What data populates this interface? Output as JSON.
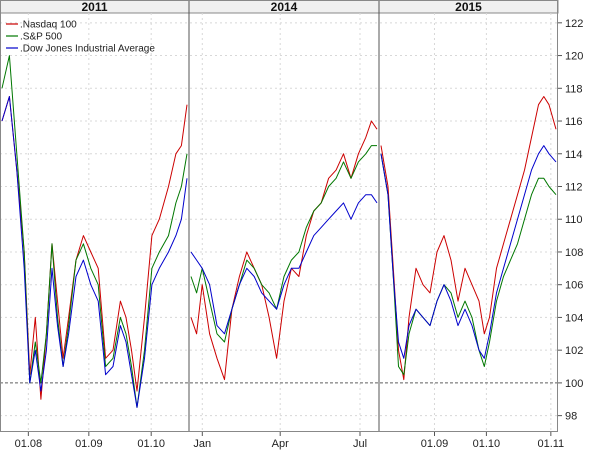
{
  "chart_data": {
    "type": "line",
    "ylim": [
      97,
      122.6
    ],
    "y_ticks": [
      98,
      100,
      102,
      104,
      106,
      108,
      110,
      112,
      114,
      116,
      118,
      120,
      122
    ],
    "baseline": 100,
    "grid": true,
    "legend_position": "top-left",
    "colors": {
      "Nasdaq 100": "#cc0000",
      "S&P 500": "#007700",
      "Dow Jones Industrial Average": "#0000cc"
    },
    "legend": [
      {
        "label": ".Nasdaq 100",
        "series": "Nasdaq 100"
      },
      {
        "label": ".S&P 500",
        "series": "S&P 500"
      },
      {
        "label": ".Dow Jones Industrial Average",
        "series": "Dow Jones Industrial Average"
      }
    ],
    "panels": [
      {
        "title": "2011",
        "x_ticks": [
          {
            "x": 0.15,
            "label": "01.08"
          },
          {
            "x": 0.47,
            "label": "01.09"
          },
          {
            "x": 0.8,
            "label": "01.10"
          }
        ],
        "series": [
          {
            "name": "Nasdaq 100",
            "x": [
              0,
              0.04,
              0.08,
              0.12,
              0.15,
              0.18,
              0.21,
              0.24,
              0.27,
              0.3,
              0.33,
              0.36,
              0.4,
              0.44,
              0.48,
              0.52,
              0.56,
              0.6,
              0.64,
              0.67,
              0.7,
              0.73,
              0.77,
              0.81,
              0.85,
              0.9,
              0.94,
              0.97,
              1
            ],
            "values": [
              116,
              117.5,
              113,
              108,
              100.5,
              104,
              99,
              103,
              108.5,
              105,
              101.5,
              104,
              107.5,
              109,
              108,
              107,
              101.5,
              102,
              105,
              104,
              102,
              99.5,
              104,
              109,
              110,
              112,
              114,
              114.5,
              117
            ]
          },
          {
            "name": "S&P 500",
            "x": [
              0,
              0.04,
              0.08,
              0.12,
              0.15,
              0.18,
              0.21,
              0.24,
              0.27,
              0.3,
              0.33,
              0.36,
              0.4,
              0.44,
              0.48,
              0.52,
              0.56,
              0.6,
              0.64,
              0.67,
              0.7,
              0.73,
              0.77,
              0.81,
              0.85,
              0.9,
              0.94,
              0.97,
              1
            ],
            "values": [
              118,
              120,
              114,
              108,
              100,
              102.5,
              100,
              103,
              108.5,
              104,
              101,
              103.5,
              107.5,
              108.5,
              107,
              106,
              101,
              101.5,
              104,
              103,
              101,
              98.5,
              102,
              107,
              108,
              109,
              111,
              112,
              114
            ]
          },
          {
            "name": "Dow Jones Industrial Average",
            "x": [
              0,
              0.04,
              0.08,
              0.12,
              0.15,
              0.18,
              0.21,
              0.24,
              0.27,
              0.3,
              0.33,
              0.36,
              0.4,
              0.44,
              0.48,
              0.52,
              0.56,
              0.6,
              0.64,
              0.67,
              0.7,
              0.73,
              0.77,
              0.81,
              0.85,
              0.9,
              0.94,
              0.97,
              1
            ],
            "values": [
              116,
              117.5,
              113,
              107,
              100,
              102,
              99.5,
              102,
              107,
              103.5,
              101,
              103,
              106.5,
              107.5,
              106,
              105,
              100.5,
              101,
              103.5,
              102.5,
              100.5,
              98.5,
              101.5,
              106,
              107,
              108,
              109,
              110,
              112.5
            ]
          }
        ]
      },
      {
        "title": "2014",
        "x_ticks": [
          {
            "x": 0.07,
            "label": "Jan"
          },
          {
            "x": 0.48,
            "label": "Apr"
          },
          {
            "x": 0.9,
            "label": "Jul"
          }
        ],
        "series": [
          {
            "name": "Nasdaq 100",
            "x": [
              0,
              0.03,
              0.06,
              0.1,
              0.14,
              0.18,
              0.22,
              0.26,
              0.3,
              0.34,
              0.38,
              0.42,
              0.46,
              0.5,
              0.54,
              0.58,
              0.62,
              0.66,
              0.7,
              0.74,
              0.78,
              0.82,
              0.86,
              0.9,
              0.94,
              0.97,
              1
            ],
            "values": [
              104,
              103,
              106,
              103,
              101.5,
              100.2,
              104.5,
              106.5,
              108,
              107,
              106,
              104,
              101.5,
              105,
              107,
              106.5,
              109,
              110.5,
              111,
              112.5,
              113,
              114,
              112.5,
              114,
              115,
              116,
              115.5
            ]
          },
          {
            "name": "S&P 500",
            "x": [
              0,
              0.03,
              0.06,
              0.1,
              0.14,
              0.18,
              0.22,
              0.26,
              0.3,
              0.34,
              0.38,
              0.42,
              0.46,
              0.5,
              0.54,
              0.58,
              0.62,
              0.66,
              0.7,
              0.74,
              0.78,
              0.82,
              0.86,
              0.9,
              0.94,
              0.97,
              1
            ],
            "values": [
              106.5,
              105.5,
              107,
              105,
              103,
              102.5,
              104.5,
              106,
              107.5,
              107,
              106,
              105.5,
              104.5,
              106.5,
              107.5,
              108,
              109.5,
              110.5,
              111,
              112,
              112.5,
              113.5,
              112.5,
              113.5,
              114,
              114.5,
              114.5
            ]
          },
          {
            "name": "Dow Jones Industrial Average",
            "x": [
              0,
              0.03,
              0.06,
              0.1,
              0.14,
              0.18,
              0.22,
              0.26,
              0.3,
              0.34,
              0.38,
              0.42,
              0.46,
              0.5,
              0.54,
              0.58,
              0.62,
              0.66,
              0.7,
              0.74,
              0.78,
              0.82,
              0.86,
              0.9,
              0.94,
              0.97,
              1
            ],
            "values": [
              108,
              107.5,
              107,
              106,
              103.5,
              103,
              104.5,
              106,
              107,
              106.5,
              105.5,
              105,
              104.5,
              106,
              107,
              107,
              108,
              109,
              109.5,
              110,
              110.5,
              111,
              110,
              111,
              111.5,
              111.5,
              111
            ]
          }
        ]
      },
      {
        "title": "2015",
        "x_ticks": [
          {
            "x": 0.31,
            "label": "01.09"
          },
          {
            "x": 0.6,
            "label": "01.10"
          },
          {
            "x": 0.96,
            "label": "01.11"
          }
        ],
        "series": [
          {
            "name": "Nasdaq 100",
            "x": [
              0,
              0.04,
              0.07,
              0.1,
              0.13,
              0.16,
              0.2,
              0.24,
              0.28,
              0.32,
              0.36,
              0.4,
              0.44,
              0.48,
              0.52,
              0.56,
              0.59,
              0.62,
              0.66,
              0.7,
              0.74,
              0.78,
              0.82,
              0.86,
              0.9,
              0.93,
              0.96,
              1
            ],
            "values": [
              114.5,
              112,
              107,
              102,
              100.2,
              104,
              107,
              106,
              105.5,
              108,
              109,
              107.5,
              105,
              107,
              106,
              105,
              103,
              104,
              107,
              108.5,
              110,
              111.5,
              113,
              115,
              117,
              117.5,
              117,
              115.5
            ]
          },
          {
            "name": "S&P 500",
            "x": [
              0,
              0.04,
              0.07,
              0.1,
              0.13,
              0.16,
              0.2,
              0.24,
              0.28,
              0.32,
              0.36,
              0.4,
              0.44,
              0.48,
              0.52,
              0.56,
              0.59,
              0.62,
              0.66,
              0.7,
              0.74,
              0.78,
              0.82,
              0.86,
              0.9,
              0.93,
              0.96,
              1
            ],
            "values": [
              114,
              111.5,
              106.5,
              101,
              100.5,
              103,
              104.5,
              104,
              103.5,
              105,
              106,
              105.5,
              104,
              105,
              104,
              102,
              101,
              102.5,
              105,
              106.5,
              107.5,
              108.5,
              110,
              111.5,
              112.5,
              112.5,
              112,
              111.5
            ]
          },
          {
            "name": "Dow Jones Industrial Average",
            "x": [
              0,
              0.04,
              0.07,
              0.1,
              0.13,
              0.16,
              0.2,
              0.24,
              0.28,
              0.32,
              0.36,
              0.4,
              0.44,
              0.48,
              0.52,
              0.56,
              0.59,
              0.62,
              0.66,
              0.7,
              0.74,
              0.78,
              0.82,
              0.86,
              0.9,
              0.93,
              0.96,
              1
            ],
            "values": [
              114,
              111.5,
              106.5,
              102.5,
              101.5,
              103.5,
              104.5,
              104,
              103.5,
              105,
              106,
              105,
              103.5,
              104.5,
              103.5,
              102,
              101.5,
              103,
              105.5,
              107,
              108.5,
              110,
              111.5,
              113,
              114,
              114.5,
              114,
              113.5
            ]
          }
        ]
      }
    ]
  }
}
